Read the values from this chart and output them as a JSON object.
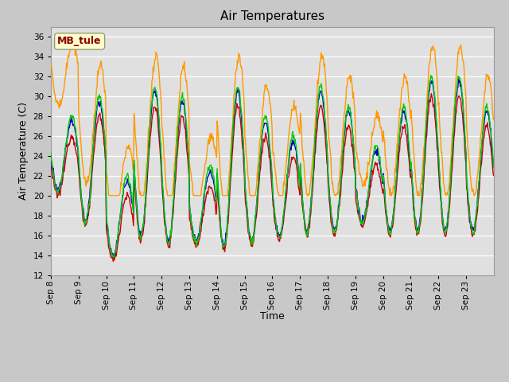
{
  "title": "Air Temperatures",
  "ylabel": "Air Temperature (C)",
  "xlabel": "Time",
  "ylim": [
    12,
    37
  ],
  "yticks": [
    12,
    14,
    16,
    18,
    20,
    22,
    24,
    26,
    28,
    30,
    32,
    34,
    36
  ],
  "colors": {
    "AirT": "#cc0000",
    "li75_t": "#0000cc",
    "li77_temp": "#00cc00",
    "Tsonic": "#ff9900"
  },
  "annotation_text": "MB_tule",
  "annotation_color": "#8b0000",
  "annotation_bg": "#ffffcc",
  "fig_bg": "#c8c8c8",
  "plot_bg": "#e0e0e0",
  "grid_color": "#ffffff",
  "title_fontsize": 11,
  "tick_fontsize": 7.5,
  "label_fontsize": 9,
  "n_days": 16,
  "start_day": 8,
  "xtick_labels": [
    "Sep 8",
    "Sep 9",
    "Sep 10",
    "Sep 11",
    "Sep 12",
    "Sep 13",
    "Sep 14",
    "Sep 15",
    "Sep 16",
    "Sep 17",
    "Sep 18",
    "Sep 19",
    "Sep 20",
    "Sep 21",
    "Sep 22",
    "Sep 23"
  ]
}
